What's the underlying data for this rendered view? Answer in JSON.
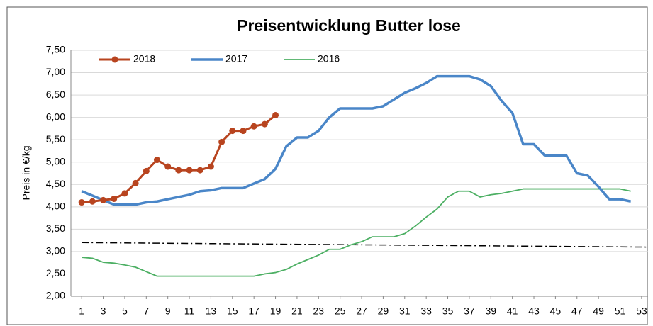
{
  "chart_data": {
    "type": "line",
    "title": "Preisentwicklung Butter lose",
    "y_label": "Preis in €/kg",
    "x": [
      1,
      2,
      3,
      4,
      5,
      6,
      7,
      8,
      9,
      10,
      11,
      12,
      13,
      14,
      15,
      16,
      17,
      18,
      19,
      20,
      21,
      22,
      23,
      24,
      25,
      26,
      27,
      28,
      29,
      30,
      31,
      32,
      33,
      34,
      35,
      36,
      37,
      38,
      39,
      40,
      41,
      42,
      43,
      44,
      45,
      46,
      47,
      48,
      49,
      50,
      51,
      52
    ],
    "xlim": [
      0,
      53.6
    ],
    "xticks": [
      1,
      3,
      5,
      7,
      9,
      11,
      13,
      15,
      17,
      19,
      21,
      23,
      25,
      27,
      29,
      31,
      33,
      35,
      37,
      39,
      41,
      43,
      45,
      47,
      49,
      51,
      53
    ],
    "ylim": [
      2,
      7.5
    ],
    "yticks": [
      {
        "value": 2,
        "label": "2,00"
      },
      {
        "value": 2.5,
        "label": "2,50"
      },
      {
        "value": 3,
        "label": "3,00"
      },
      {
        "value": 3.5,
        "label": "3,50"
      },
      {
        "value": 4,
        "label": "4,00"
      },
      {
        "value": 4.5,
        "label": "4,50"
      },
      {
        "value": 5,
        "label": "5,00"
      },
      {
        "value": 5.5,
        "label": "5,50"
      },
      {
        "value": 6,
        "label": "6,00"
      },
      {
        "value": 6.5,
        "label": "6,50"
      },
      {
        "value": 7,
        "label": "7,00"
      },
      {
        "value": 7.5,
        "label": "7,50"
      }
    ],
    "grid": true,
    "legend": "top-left",
    "series": [
      {
        "name": "2018",
        "color": "#b8441f",
        "width": 3,
        "markers": true,
        "values": [
          4.1,
          4.12,
          4.15,
          4.18,
          4.3,
          4.53,
          4.8,
          5.05,
          4.9,
          4.82,
          4.82,
          4.82,
          4.9,
          5.45,
          5.7,
          5.7,
          5.8,
          5.85,
          6.05,
          null,
          null,
          null,
          null,
          null,
          null,
          null,
          null,
          null,
          null,
          null,
          null,
          null,
          null,
          null,
          null,
          null,
          null,
          null,
          null,
          null,
          null,
          null,
          null,
          null,
          null,
          null,
          null,
          null,
          null,
          null,
          null,
          null
        ]
      },
      {
        "name": "2017",
        "color": "#4a86c8",
        "width": 3.5,
        "markers": false,
        "values": [
          4.35,
          4.25,
          4.15,
          4.05,
          4.05,
          4.05,
          4.1,
          4.12,
          4.17,
          4.22,
          4.27,
          4.35,
          4.37,
          4.42,
          4.42,
          4.42,
          4.52,
          4.62,
          4.85,
          5.35,
          5.55,
          5.55,
          5.7,
          6.0,
          6.2,
          6.2,
          6.2,
          6.2,
          6.25,
          6.4,
          6.55,
          6.65,
          6.77,
          6.92,
          6.92,
          6.92,
          6.92,
          6.85,
          6.7,
          6.37,
          6.1,
          5.4,
          5.4,
          5.15,
          5.15,
          5.15,
          4.75,
          4.7,
          4.45,
          4.17,
          4.17,
          4.12
        ]
      },
      {
        "name": "2016",
        "color": "#4caf63",
        "width": 1.8,
        "markers": false,
        "values": [
          2.87,
          2.85,
          2.76,
          2.74,
          2.7,
          2.65,
          2.55,
          2.45,
          2.45,
          2.45,
          2.45,
          2.45,
          2.45,
          2.45,
          2.45,
          2.45,
          2.45,
          2.5,
          2.53,
          2.6,
          2.72,
          2.82,
          2.92,
          3.05,
          3.05,
          3.15,
          3.22,
          3.33,
          3.33,
          3.33,
          3.4,
          3.57,
          3.77,
          3.95,
          4.22,
          4.35,
          4.35,
          4.22,
          4.27,
          4.3,
          4.35,
          4.4,
          4.4,
          4.4,
          4.4,
          4.4,
          4.4,
          4.4,
          4.4,
          4.4,
          4.4,
          4.35
        ]
      }
    ],
    "trendline": {
      "x": [
        1,
        53.6
      ],
      "values": [
        3.2,
        3.1
      ],
      "color": "#000000"
    }
  }
}
